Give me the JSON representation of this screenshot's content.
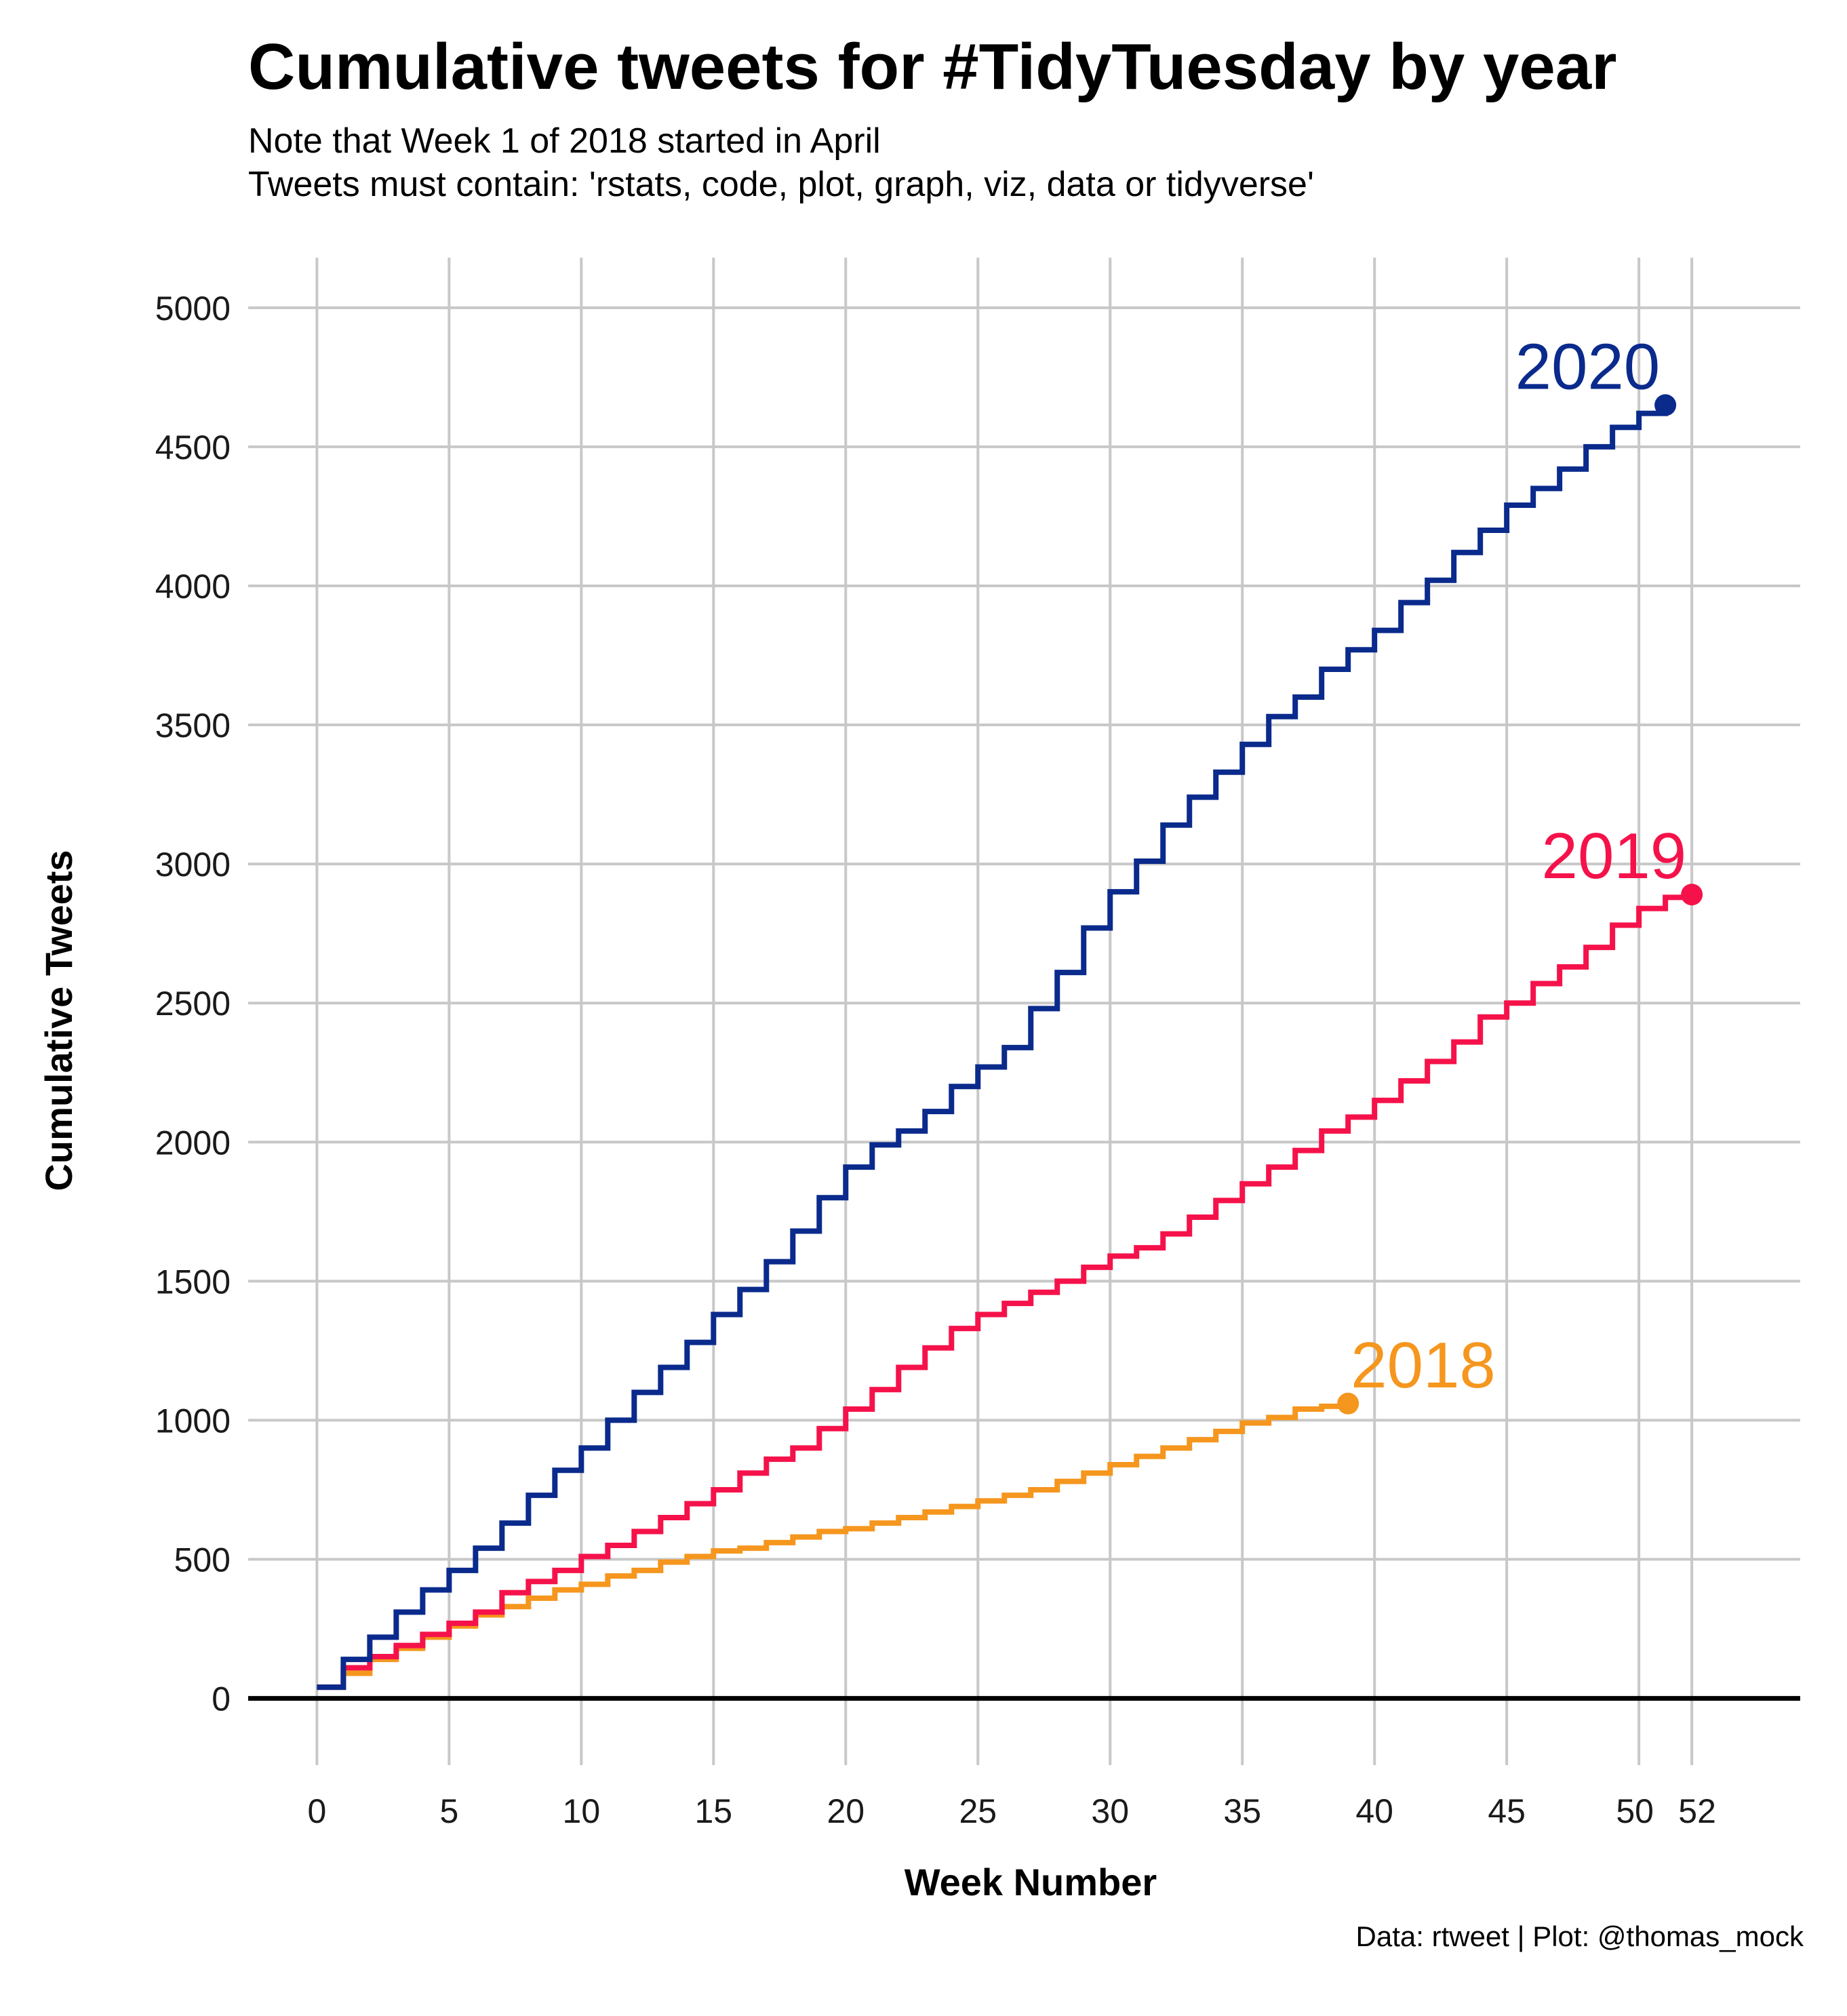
{
  "chart_data": {
    "type": "line",
    "step": true,
    "title": "Cumulative tweets for #TidyTuesday by year",
    "subtitle": [
      "Note that Week 1 of 2018 started in April",
      "Tweets must contain: 'rstats, code, plot, graph, viz, data or tidyverse'"
    ],
    "xlabel": "Week Number",
    "ylabel": "Cumulative Tweets",
    "caption": "Data: rtweet | Plot: @thomas_mock",
    "xlim": [
      -2.6,
      56.1
    ],
    "ylim": [
      -240,
      5180
    ],
    "x_ticks": [
      0,
      5,
      10,
      15,
      20,
      25,
      30,
      35,
      40,
      45,
      50,
      52
    ],
    "y_ticks": [
      0,
      500,
      1000,
      1500,
      2000,
      2500,
      3000,
      3500,
      4000,
      4500,
      5000
    ],
    "grid": true,
    "legend": "none (direct labels at series end)",
    "series": [
      {
        "name": "2020",
        "color": "#0a2a8c",
        "x": [
          0,
          1,
          2,
          3,
          4,
          5,
          6,
          7,
          8,
          9,
          10,
          11,
          12,
          13,
          14,
          15,
          16,
          17,
          18,
          19,
          20,
          21,
          22,
          23,
          24,
          25,
          26,
          27,
          28,
          29,
          30,
          31,
          32,
          33,
          34,
          35,
          36,
          37,
          38,
          39,
          40,
          41,
          42,
          43,
          44,
          45,
          46,
          47,
          48,
          49,
          50,
          51
        ],
        "values": [
          40,
          140,
          220,
          310,
          390,
          460,
          540,
          630,
          730,
          820,
          900,
          1000,
          1100,
          1190,
          1280,
          1380,
          1470,
          1570,
          1680,
          1800,
          1910,
          1990,
          2040,
          2110,
          2200,
          2270,
          2340,
          2480,
          2610,
          2770,
          2900,
          3010,
          3140,
          3240,
          3330,
          3430,
          3530,
          3600,
          3700,
          3770,
          3840,
          3940,
          4020,
          4120,
          4200,
          4290,
          4350,
          4420,
          4500,
          4570,
          4620,
          4650
        ]
      },
      {
        "name": "2019",
        "color": "#f5124a",
        "x": [
          0,
          1,
          2,
          3,
          4,
          5,
          6,
          7,
          8,
          9,
          10,
          11,
          12,
          13,
          14,
          15,
          16,
          17,
          18,
          19,
          20,
          21,
          22,
          23,
          24,
          25,
          26,
          27,
          28,
          29,
          30,
          31,
          32,
          33,
          34,
          35,
          36,
          37,
          38,
          39,
          40,
          41,
          42,
          43,
          44,
          45,
          46,
          47,
          48,
          49,
          50,
          51,
          52
        ],
        "values": [
          40,
          110,
          150,
          190,
          230,
          270,
          310,
          380,
          420,
          460,
          510,
          550,
          600,
          650,
          700,
          750,
          810,
          860,
          900,
          970,
          1040,
          1110,
          1190,
          1260,
          1330,
          1380,
          1420,
          1460,
          1500,
          1550,
          1590,
          1620,
          1670,
          1730,
          1790,
          1850,
          1910,
          1970,
          2040,
          2090,
          2150,
          2220,
          2290,
          2360,
          2450,
          2500,
          2570,
          2630,
          2700,
          2780,
          2840,
          2880,
          2890
        ]
      },
      {
        "name": "2018",
        "color": "#f5961e",
        "x": [
          0,
          1,
          2,
          3,
          4,
          5,
          6,
          7,
          8,
          9,
          10,
          11,
          12,
          13,
          14,
          15,
          16,
          17,
          18,
          19,
          20,
          21,
          22,
          23,
          24,
          25,
          26,
          27,
          28,
          29,
          30,
          31,
          32,
          33,
          34,
          35,
          36,
          37,
          38,
          39
        ],
        "values": [
          40,
          90,
          140,
          180,
          220,
          260,
          300,
          330,
          360,
          390,
          410,
          440,
          460,
          490,
          510,
          530,
          540,
          560,
          580,
          600,
          610,
          630,
          650,
          670,
          690,
          710,
          730,
          750,
          780,
          810,
          840,
          870,
          900,
          930,
          960,
          990,
          1010,
          1040,
          1050,
          1060
        ]
      }
    ]
  }
}
